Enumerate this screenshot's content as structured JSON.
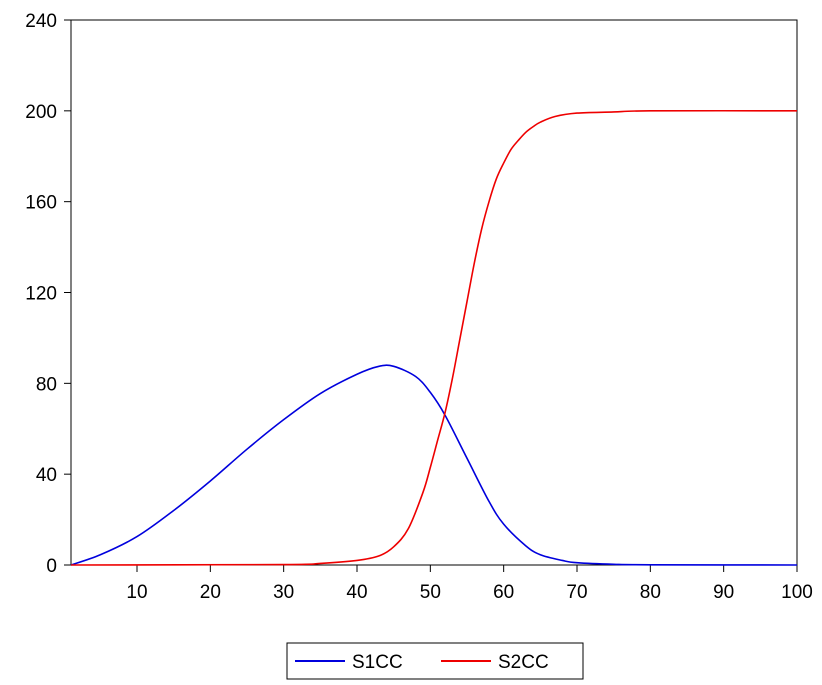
{
  "chart_data": {
    "type": "line",
    "title": "",
    "xlabel": "",
    "ylabel": "",
    "xlim": [
      1,
      100
    ],
    "ylim": [
      0,
      240
    ],
    "x_ticks": [
      10,
      20,
      30,
      40,
      50,
      60,
      70,
      80,
      90,
      100
    ],
    "y_ticks": [
      0,
      40,
      80,
      120,
      160,
      200,
      240
    ],
    "grid": false,
    "legend_position": "bottom-center",
    "series": [
      {
        "name": "S1CC",
        "color": "#0000dd",
        "points": [
          [
            1,
            0
          ],
          [
            5,
            4.5
          ],
          [
            10,
            12.5
          ],
          [
            15,
            24
          ],
          [
            20,
            37
          ],
          [
            25,
            51
          ],
          [
            30,
            64
          ],
          [
            35,
            75.5
          ],
          [
            40,
            84
          ],
          [
            43,
            87.5
          ],
          [
            45,
            87.5
          ],
          [
            48,
            83
          ],
          [
            50,
            76
          ],
          [
            52,
            66
          ],
          [
            55,
            47
          ],
          [
            58,
            28
          ],
          [
            60,
            18
          ],
          [
            63,
            8.5
          ],
          [
            65,
            4.5
          ],
          [
            68,
            2
          ],
          [
            70,
            1
          ],
          [
            75,
            0.3
          ],
          [
            80,
            0.1
          ],
          [
            100,
            0
          ]
        ]
      },
      {
        "name": "S2CC",
        "color": "#ee0000",
        "points": [
          [
            1,
            0
          ],
          [
            30,
            0.2
          ],
          [
            35,
            0.7
          ],
          [
            40,
            2
          ],
          [
            43,
            4
          ],
          [
            45,
            8
          ],
          [
            47,
            16
          ],
          [
            49,
            32
          ],
          [
            50,
            43
          ],
          [
            51,
            55
          ],
          [
            52,
            67
          ],
          [
            53,
            82
          ],
          [
            54,
            99
          ],
          [
            55,
            116
          ],
          [
            56,
            133
          ],
          [
            57,
            148
          ],
          [
            58,
            160
          ],
          [
            59,
            170
          ],
          [
            60,
            177
          ],
          [
            61,
            183
          ],
          [
            62,
            187
          ],
          [
            63,
            190.5
          ],
          [
            64,
            193
          ],
          [
            65,
            195
          ],
          [
            67,
            197.5
          ],
          [
            70,
            199
          ],
          [
            75,
            199.5
          ],
          [
            80,
            200
          ],
          [
            100,
            200
          ]
        ]
      }
    ]
  }
}
